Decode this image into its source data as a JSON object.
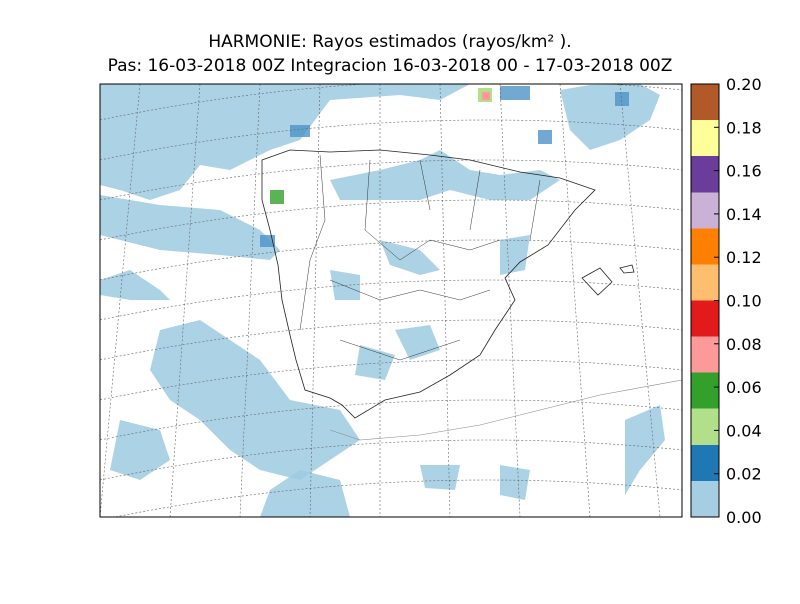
{
  "title": [
    "HARMONIE: Rayos estimados  (rayos/km² ).",
    "Pas: 16-03-2018 00Z Integracion 16-03-2018 00 - 17-03-2018 00Z"
  ],
  "colorbar": {
    "lim": [
      0,
      0.2
    ],
    "ticks": [
      {
        "value": 0,
        "label": "0.00"
      },
      {
        "value": 0.02,
        "label": "0.02"
      },
      {
        "value": 0.04,
        "label": "0.04"
      },
      {
        "value": 0.06,
        "label": "0.06"
      },
      {
        "value": 0.08,
        "label": "0.08"
      },
      {
        "value": 0.1,
        "label": "0.10"
      },
      {
        "value": 0.12,
        "label": "0.12"
      },
      {
        "value": 0.14,
        "label": "0.14"
      },
      {
        "value": 0.16,
        "label": "0.16"
      },
      {
        "value": 0.18,
        "label": "0.18"
      },
      {
        "value": 0.2,
        "label": "0.20"
      }
    ],
    "colors": [
      "#a6cee3",
      "#1f78b4",
      "#b2df8a",
      "#33a02c",
      "#fb9a99",
      "#e31a1c",
      "#fdbf6f",
      "#ff7f00",
      "#cab2d6",
      "#6a3d9a",
      "#ffff99",
      "#b15928"
    ]
  }
}
